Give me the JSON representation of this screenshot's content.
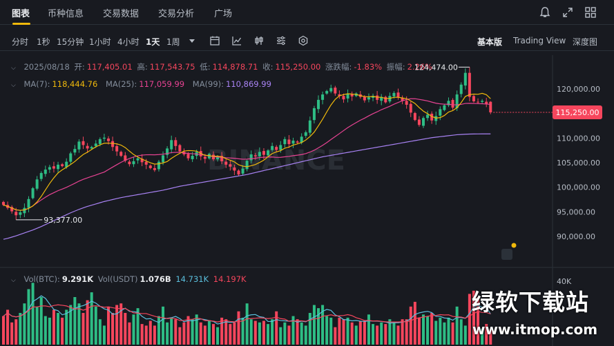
{
  "nav": {
    "tabs": [
      "图表",
      "币种信息",
      "交易数据",
      "交易分析",
      "广场"
    ],
    "active_tab": "图表",
    "accent": "#f0b90b"
  },
  "toolbar": {
    "intervals": [
      "分时",
      "1秒",
      "15分钟",
      "1小时",
      "4小时",
      "1天",
      "1周"
    ],
    "active_interval": "1天",
    "views": [
      "基本版",
      "Trading View",
      "深度图"
    ],
    "active_view": "基本版"
  },
  "ohlc": {
    "date": "2025/08/18",
    "open_label": "开:",
    "open": "117,405.01",
    "high_label": "高:",
    "high": "117,543.75",
    "low_label": "低:",
    "low": "114,878.71",
    "close_label": "收:",
    "close": "115,250.00",
    "change_label": "涨跌幅:",
    "change": "-1.83%",
    "amplitude_label": "振幅:",
    "amplitude": "2.26%"
  },
  "ma": {
    "ma7_label": "MA(7):",
    "ma7": "118,444.76",
    "ma7_color": "#f0b90b",
    "ma25_label": "MA(25):",
    "ma25": "117,059.99",
    "ma25_color": "#e84393",
    "ma99_label": "MA(99):",
    "ma99": "110,869.99",
    "ma99_color": "#a983f5"
  },
  "volume": {
    "btc_label": "Vol(BTC):",
    "btc": "9.291K",
    "usdt_label": "Vol(USDT)",
    "usdt": "1.076B",
    "ma_a": "14.731K",
    "ma_a_color": "#5bc0de",
    "ma_b": "14.197K",
    "ma_b_color": "#f6465d",
    "axis_tick": "40K"
  },
  "watermark": {
    "line1": "绿软下载站",
    "line2": "www.itmop.com"
  },
  "chart_data": {
    "type": "candlestick",
    "price_axis": {
      "ticks": [
        "120,000.00",
        "115,000.00",
        "110,000.00",
        "105,000.00",
        "100,000.00",
        "95,000.00",
        "90,000.00"
      ],
      "tick_values": [
        120000,
        115000,
        110000,
        105000,
        100000,
        95000,
        90000
      ],
      "ylim": [
        85500,
        124800
      ]
    },
    "current_price": "115,250.00",
    "current_price_value": 115250,
    "high_annotation": "124,474.00",
    "high_value": 124474,
    "low_annotation": "93,377.00",
    "low_value": 93377,
    "up_color": "#2ebd85",
    "down_color": "#f6465d",
    "closes": [
      96400,
      95800,
      95100,
      94300,
      94900,
      95800,
      97600,
      99800,
      101600,
      102900,
      103600,
      104100,
      103800,
      104600,
      104300,
      105200,
      106900,
      107800,
      109300,
      108600,
      107900,
      108200,
      108900,
      109800,
      110100,
      109400,
      108200,
      107300,
      106400,
      105400,
      104700,
      105300,
      105900,
      105100,
      104600,
      103900,
      103500,
      105200,
      106500,
      107900,
      109600,
      108400,
      107300,
      106700,
      105900,
      106400,
      107200,
      106300,
      105800,
      106800,
      105700,
      106200,
      105300,
      104600,
      104200,
      103400,
      102600,
      103800,
      105400,
      106700,
      106300,
      107200,
      106600,
      107500,
      108400,
      107600,
      108600,
      109800,
      108800,
      109500,
      109100,
      110300,
      111200,
      113600,
      116100,
      117800,
      118900,
      119600,
      120200,
      119100,
      118600,
      117900,
      119000,
      118500,
      119100,
      118400,
      117700,
      118300,
      118600,
      117800,
      118400,
      117300,
      118600,
      119200,
      118400,
      117600,
      116800,
      115200,
      113700,
      112700,
      114100,
      114800,
      113600,
      114500,
      115900,
      116700,
      117600,
      116200,
      118900,
      120900,
      123300,
      118400,
      117500,
      117300,
      117600,
      116900,
      115250
    ],
    "price_ma99": [
      89400,
      89600,
      89850,
      90100,
      90400,
      90700,
      91000,
      91300,
      91650,
      92000,
      92400,
      92800,
      93200,
      93600,
      94000,
      94400,
      94800,
      95150,
      95500,
      95800,
      96100,
      96350,
      96600,
      96850,
      97100,
      97300,
      97500,
      97700,
      97900,
      98050,
      98200,
      98350,
      98500,
      98650,
      98800,
      98950,
      99100,
      99250,
      99400,
      99600,
      99800,
      100000,
      100200,
      100350,
      100500,
      100650,
      100800,
      100950,
      101100,
      101250,
      101400,
      101550,
      101700,
      101850,
      102000,
      102150,
      102300,
      102450,
      102600,
      102800,
      103000,
      103200,
      103400,
      103600,
      103800,
      104000,
      104200,
      104400,
      104600,
      104800,
      105000,
      105200,
      105400,
      105600,
      105800,
      106000,
      106200,
      106350,
      106500,
      106650,
      106800,
      106950,
      107100,
      107250,
      107400,
      107550,
      107700,
      107850,
      108000,
      108150,
      108300,
      108450,
      108600,
      108750,
      108900,
      109050,
      109200,
      109350,
      109500,
      109650,
      109800,
      109950,
      110100,
      110200,
      110300,
      110400,
      110500,
      110600,
      110700,
      110750,
      110800,
      110830,
      110850,
      110860,
      110865,
      110868,
      110870
    ],
    "volume_values": [
      18000,
      22000,
      14000,
      16000,
      20000,
      26000,
      35000,
      39000,
      24000,
      30000,
      18000,
      17000,
      22000,
      20000,
      17000,
      22000,
      25000,
      30000,
      26000,
      20000,
      28000,
      33000,
      24000,
      16000,
      12000,
      24000,
      20000,
      25000,
      26000,
      20000,
      14000,
      19000,
      23000,
      13000,
      12000,
      15000,
      12000,
      18000,
      24000,
      14000,
      17000,
      16000,
      11000,
      14000,
      18000,
      16000,
      19000,
      14000,
      12000,
      15000,
      13000,
      11000,
      17000,
      16000,
      13000,
      14000,
      21000,
      17000,
      26000,
      16000,
      15000,
      14000,
      15000,
      13000,
      16000,
      21000,
      11000,
      14000,
      12000,
      18000,
      16000,
      14000,
      12000,
      20000,
      25000,
      23000,
      25000,
      18000,
      17000,
      11000,
      17000,
      16000,
      17000,
      14000,
      12000,
      15000,
      15000,
      19000,
      13000,
      12000,
      14000,
      13000,
      16000,
      14000,
      12000,
      16000,
      16000,
      24000,
      27000,
      17000,
      19000,
      18000,
      20000,
      15000,
      17000,
      14000,
      17000,
      14000,
      24000,
      16000,
      12000,
      32000,
      34000,
      30000,
      10000,
      13000,
      9291
    ]
  }
}
